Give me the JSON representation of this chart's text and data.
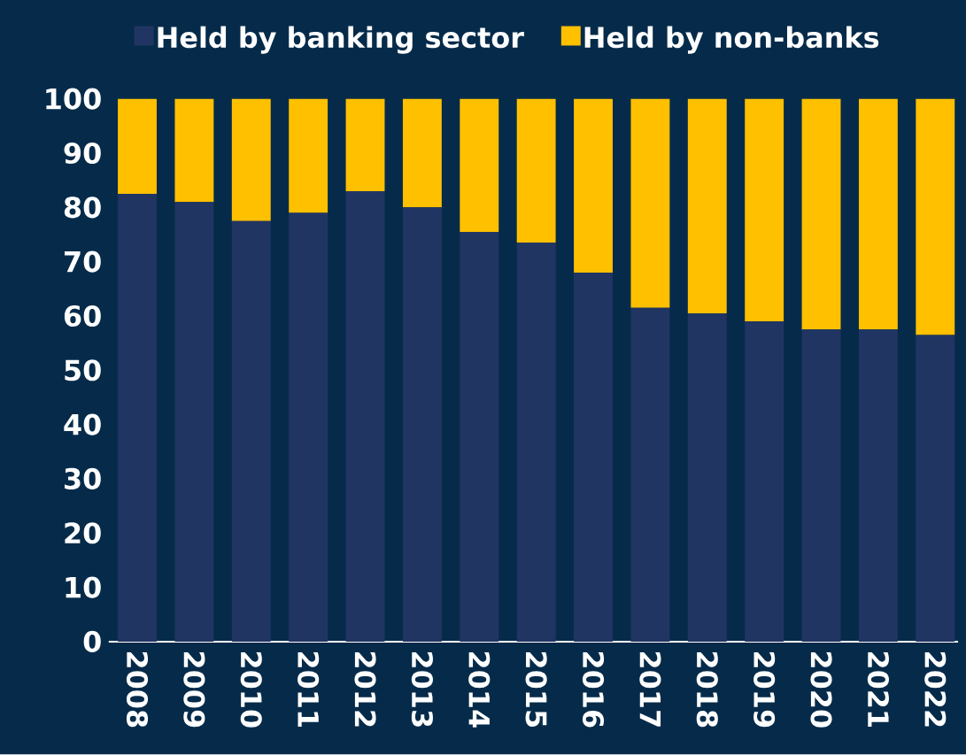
{
  "chart_data": {
    "type": "bar",
    "stacked": true,
    "categories": [
      "2008",
      "2009",
      "2010",
      "2011",
      "2012",
      "2013",
      "2014",
      "2015",
      "2016",
      "2017",
      "2018",
      "2019",
      "2020",
      "2021",
      "2022"
    ],
    "series": [
      {
        "name": "Held by banking sector",
        "color": "#213563",
        "values": [
          82.5,
          81,
          77.5,
          79,
          83,
          80,
          75.5,
          73.5,
          68,
          61.5,
          60.5,
          59,
          57.5,
          57.5,
          56.5
        ]
      },
      {
        "name": "Held by non-banks",
        "color": "#ffc000",
        "values": [
          17.5,
          19,
          22.5,
          21,
          17,
          20,
          24.5,
          26.5,
          32,
          38.5,
          39.5,
          41,
          42.5,
          42.5,
          43.5
        ]
      }
    ],
    "ylim": [
      0,
      100
    ],
    "yticks": [
      0,
      10,
      20,
      30,
      40,
      50,
      60,
      70,
      80,
      90,
      100
    ],
    "grid": false,
    "legend": "top"
  }
}
